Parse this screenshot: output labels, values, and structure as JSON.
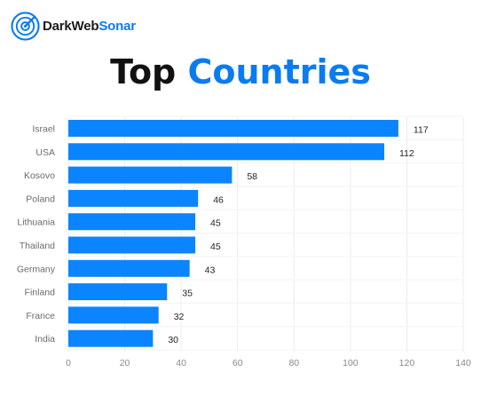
{
  "brand": {
    "name_dark": "DarkWeb",
    "name_accent": "Sonar",
    "accent_color": "#0b7cf0",
    "logo_icon": "radar-icon"
  },
  "heading": {
    "part1": "Top",
    "part2": "Countries"
  },
  "chart_data": {
    "type": "bar",
    "orientation": "horizontal",
    "categories": [
      "Israel",
      "USA",
      "Kosovo",
      "Poland",
      "Lithuania",
      "Thailand",
      "Germany",
      "Finland",
      "France",
      "India"
    ],
    "values": [
      117,
      112,
      58,
      46,
      45,
      45,
      43,
      35,
      32,
      30
    ],
    "xlim": [
      0,
      140
    ],
    "xticks": [
      0,
      20,
      40,
      60,
      80,
      100,
      120,
      140
    ],
    "grid": true,
    "bar_color": "#0b84ff"
  }
}
